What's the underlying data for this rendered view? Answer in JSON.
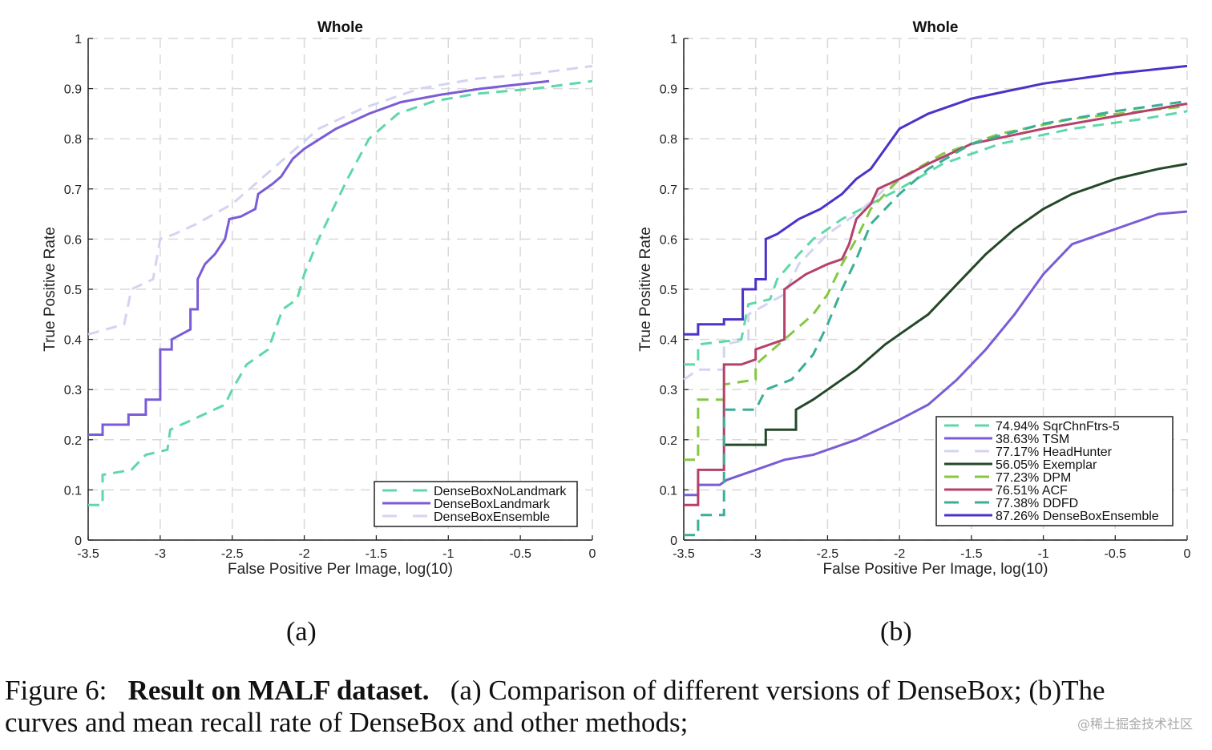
{
  "chart_data": [
    {
      "type": "line",
      "title": "Whole",
      "xlabel": "False Positive Per Image, log(10)",
      "ylabel": "True Positive Rate",
      "xlim": [
        -3.5,
        0
      ],
      "ylim": [
        0,
        1
      ],
      "xticks": [
        "-3.5",
        "-3",
        "-2.5",
        "-2",
        "-1.5",
        "-1",
        "-0.5",
        "0"
      ],
      "yticks": [
        "0",
        "0.1",
        "0.2",
        "0.3",
        "0.4",
        "0.5",
        "0.6",
        "0.7",
        "0.8",
        "0.9",
        "1"
      ],
      "grid": true,
      "legend_position": "bottom-right",
      "series": [
        {
          "name": "DenseBoxNoLandmark",
          "color": "#5fd8a8",
          "dashed": true,
          "points": [
            [
              -3.5,
              0.07
            ],
            [
              -3.4,
              0.07
            ],
            [
              -3.4,
              0.13
            ],
            [
              -3.2,
              0.14
            ],
            [
              -3.1,
              0.17
            ],
            [
              -2.95,
              0.18
            ],
            [
              -2.93,
              0.22
            ],
            [
              -2.7,
              0.25
            ],
            [
              -2.55,
              0.27
            ],
            [
              -2.5,
              0.3
            ],
            [
              -2.4,
              0.35
            ],
            [
              -2.25,
              0.38
            ],
            [
              -2.2,
              0.42
            ],
            [
              -2.15,
              0.46
            ],
            [
              -2.05,
              0.48
            ],
            [
              -2.0,
              0.53
            ],
            [
              -1.9,
              0.6
            ],
            [
              -1.8,
              0.66
            ],
            [
              -1.7,
              0.72
            ],
            [
              -1.55,
              0.8
            ],
            [
              -1.35,
              0.85
            ],
            [
              -1.1,
              0.875
            ],
            [
              -0.8,
              0.89
            ],
            [
              -0.4,
              0.9
            ],
            [
              0,
              0.915
            ]
          ]
        },
        {
          "name": "DenseBoxLandmark",
          "color": "#7a5cd6",
          "dashed": false,
          "points": [
            [
              -3.5,
              0.21
            ],
            [
              -3.4,
              0.21
            ],
            [
              -3.4,
              0.23
            ],
            [
              -3.22,
              0.23
            ],
            [
              -3.22,
              0.25
            ],
            [
              -3.1,
              0.25
            ],
            [
              -3.1,
              0.28
            ],
            [
              -3.0,
              0.28
            ],
            [
              -3.0,
              0.38
            ],
            [
              -2.92,
              0.38
            ],
            [
              -2.92,
              0.4
            ],
            [
              -2.79,
              0.42
            ],
            [
              -2.79,
              0.46
            ],
            [
              -2.74,
              0.46
            ],
            [
              -2.74,
              0.52
            ],
            [
              -2.69,
              0.55
            ],
            [
              -2.62,
              0.57
            ],
            [
              -2.55,
              0.6
            ],
            [
              -2.52,
              0.64
            ],
            [
              -2.44,
              0.645
            ],
            [
              -2.34,
              0.66
            ],
            [
              -2.32,
              0.69
            ],
            [
              -2.22,
              0.71
            ],
            [
              -2.16,
              0.725
            ],
            [
              -2.08,
              0.76
            ],
            [
              -2.0,
              0.78
            ],
            [
              -1.89,
              0.8
            ],
            [
              -1.78,
              0.82
            ],
            [
              -1.55,
              0.85
            ],
            [
              -1.33,
              0.873
            ],
            [
              -1.05,
              0.888
            ],
            [
              -0.77,
              0.9
            ],
            [
              -0.3,
              0.915
            ]
          ]
        },
        {
          "name": "DenseBoxEnsemble",
          "color": "#d4d4f2",
          "dashed": true,
          "points": [
            [
              -3.5,
              0.41
            ],
            [
              -3.25,
              0.43
            ],
            [
              -3.2,
              0.5
            ],
            [
              -3.05,
              0.52
            ],
            [
              -3.0,
              0.6
            ],
            [
              -2.9,
              0.61
            ],
            [
              -2.75,
              0.63
            ],
            [
              -2.5,
              0.67
            ],
            [
              -2.3,
              0.72
            ],
            [
              -2.1,
              0.77
            ],
            [
              -1.9,
              0.82
            ],
            [
              -1.6,
              0.86
            ],
            [
              -1.2,
              0.9
            ],
            [
              -0.8,
              0.92
            ],
            [
              -0.4,
              0.93
            ],
            [
              0,
              0.945
            ]
          ]
        }
      ]
    },
    {
      "type": "line",
      "title": "Whole",
      "xlabel": "False Positive Per Image, log(10)",
      "ylabel": "True Positive Rate",
      "xlim": [
        -3.5,
        0
      ],
      "ylim": [
        0,
        1
      ],
      "xticks": [
        "-3.5",
        "-3",
        "-2.5",
        "-2",
        "-1.5",
        "-1",
        "-0.5",
        "0"
      ],
      "yticks": [
        "0",
        "0.1",
        "0.2",
        "0.3",
        "0.4",
        "0.5",
        "0.6",
        "0.7",
        "0.8",
        "0.9",
        "1"
      ],
      "grid": true,
      "legend_position": "bottom-right",
      "series": [
        {
          "name": "74.94% SqrChnFtrs-5",
          "color": "#5fd8a8",
          "dashed": true,
          "points": [
            [
              -3.5,
              0.35
            ],
            [
              -3.4,
              0.35
            ],
            [
              -3.4,
              0.39
            ],
            [
              -3.1,
              0.4
            ],
            [
              -3.05,
              0.47
            ],
            [
              -2.9,
              0.48
            ],
            [
              -2.85,
              0.52
            ],
            [
              -2.7,
              0.57
            ],
            [
              -2.6,
              0.6
            ],
            [
              -2.4,
              0.64
            ],
            [
              -2.2,
              0.67
            ],
            [
              -2.0,
              0.7
            ],
            [
              -1.7,
              0.75
            ],
            [
              -1.3,
              0.79
            ],
            [
              -0.8,
              0.82
            ],
            [
              -0.3,
              0.84
            ],
            [
              0,
              0.855
            ]
          ]
        },
        {
          "name": "38.63% TSM",
          "color": "#7a5cd6",
          "dashed": false,
          "points": [
            [
              -3.5,
              0.09
            ],
            [
              -3.4,
              0.09
            ],
            [
              -3.4,
              0.11
            ],
            [
              -3.25,
              0.11
            ],
            [
              -3.2,
              0.12
            ],
            [
              -3.0,
              0.14
            ],
            [
              -2.8,
              0.16
            ],
            [
              -2.6,
              0.17
            ],
            [
              -2.3,
              0.2
            ],
            [
              -2.0,
              0.24
            ],
            [
              -1.8,
              0.27
            ],
            [
              -1.6,
              0.32
            ],
            [
              -1.4,
              0.38
            ],
            [
              -1.2,
              0.45
            ],
            [
              -1.0,
              0.53
            ],
            [
              -0.8,
              0.59
            ],
            [
              -0.5,
              0.62
            ],
            [
              -0.2,
              0.65
            ],
            [
              0,
              0.655
            ]
          ]
        },
        {
          "name": "77.17% HeadHunter",
          "color": "#d4d4f2",
          "dashed": true,
          "points": [
            [
              -3.5,
              0.32
            ],
            [
              -3.4,
              0.34
            ],
            [
              -3.22,
              0.34
            ],
            [
              -3.22,
              0.39
            ],
            [
              -3.05,
              0.4
            ],
            [
              -3.05,
              0.45
            ],
            [
              -2.8,
              0.49
            ],
            [
              -2.7,
              0.55
            ],
            [
              -2.5,
              0.61
            ],
            [
              -2.3,
              0.65
            ],
            [
              -2.1,
              0.7
            ],
            [
              -1.8,
              0.75
            ],
            [
              -1.4,
              0.8
            ],
            [
              -1.0,
              0.83
            ],
            [
              -0.5,
              0.855
            ],
            [
              0,
              0.875
            ]
          ]
        },
        {
          "name": "56.05% Exemplar",
          "color": "#24482a",
          "dashed": false,
          "points": [
            [
              -3.22,
              0.19
            ],
            [
              -2.93,
              0.19
            ],
            [
              -2.93,
              0.22
            ],
            [
              -2.72,
              0.22
            ],
            [
              -2.72,
              0.26
            ],
            [
              -2.6,
              0.28
            ],
            [
              -2.5,
              0.3
            ],
            [
              -2.3,
              0.34
            ],
            [
              -2.1,
              0.39
            ],
            [
              -2.0,
              0.41
            ],
            [
              -1.8,
              0.45
            ],
            [
              -1.6,
              0.51
            ],
            [
              -1.4,
              0.57
            ],
            [
              -1.2,
              0.62
            ],
            [
              -1.0,
              0.66
            ],
            [
              -0.8,
              0.69
            ],
            [
              -0.5,
              0.72
            ],
            [
              -0.2,
              0.74
            ],
            [
              0,
              0.75
            ]
          ]
        },
        {
          "name": "77.23% DPM",
          "color": "#84c844",
          "dashed": true,
          "points": [
            [
              -3.5,
              0.16
            ],
            [
              -3.4,
              0.16
            ],
            [
              -3.4,
              0.28
            ],
            [
              -3.22,
              0.28
            ],
            [
              -3.22,
              0.31
            ],
            [
              -3.0,
              0.32
            ],
            [
              -3.0,
              0.35
            ],
            [
              -2.8,
              0.4
            ],
            [
              -2.6,
              0.45
            ],
            [
              -2.5,
              0.49
            ],
            [
              -2.4,
              0.55
            ],
            [
              -2.3,
              0.6
            ],
            [
              -2.2,
              0.66
            ],
            [
              -2.0,
              0.72
            ],
            [
              -1.7,
              0.77
            ],
            [
              -1.3,
              0.81
            ],
            [
              -0.8,
              0.84
            ],
            [
              0,
              0.865
            ]
          ]
        },
        {
          "name": "76.51% ACF",
          "color": "#b5416b",
          "dashed": false,
          "points": [
            [
              -3.5,
              0.07
            ],
            [
              -3.4,
              0.07
            ],
            [
              -3.4,
              0.14
            ],
            [
              -3.22,
              0.14
            ],
            [
              -3.22,
              0.35
            ],
            [
              -3.1,
              0.35
            ],
            [
              -3.0,
              0.36
            ],
            [
              -3.0,
              0.38
            ],
            [
              -2.8,
              0.4
            ],
            [
              -2.8,
              0.5
            ],
            [
              -2.65,
              0.53
            ],
            [
              -2.5,
              0.55
            ],
            [
              -2.4,
              0.56
            ],
            [
              -2.35,
              0.59
            ],
            [
              -2.3,
              0.64
            ],
            [
              -2.2,
              0.67
            ],
            [
              -2.15,
              0.7
            ],
            [
              -2.0,
              0.72
            ],
            [
              -1.8,
              0.75
            ],
            [
              -1.5,
              0.79
            ],
            [
              -1.0,
              0.82
            ],
            [
              -0.5,
              0.845
            ],
            [
              0,
              0.87
            ]
          ]
        },
        {
          "name": "77.38% DDFD",
          "color": "#3aaf96",
          "dashed": true,
          "points": [
            [
              -3.5,
              0.01
            ],
            [
              -3.4,
              0.01
            ],
            [
              -3.4,
              0.05
            ],
            [
              -3.22,
              0.05
            ],
            [
              -3.22,
              0.26
            ],
            [
              -3.0,
              0.26
            ],
            [
              -2.93,
              0.3
            ],
            [
              -2.75,
              0.32
            ],
            [
              -2.6,
              0.37
            ],
            [
              -2.5,
              0.43
            ],
            [
              -2.4,
              0.5
            ],
            [
              -2.3,
              0.56
            ],
            [
              -2.2,
              0.63
            ],
            [
              -2.0,
              0.69
            ],
            [
              -1.8,
              0.74
            ],
            [
              -1.5,
              0.79
            ],
            [
              -1.0,
              0.83
            ],
            [
              -0.5,
              0.855
            ],
            [
              0,
              0.875
            ]
          ]
        },
        {
          "name": "87.26% DenseBoxEnsemble",
          "color": "#4a33c8",
          "dashed": false,
          "points": [
            [
              -3.5,
              0.41
            ],
            [
              -3.4,
              0.41
            ],
            [
              -3.4,
              0.43
            ],
            [
              -3.22,
              0.43
            ],
            [
              -3.22,
              0.44
            ],
            [
              -3.09,
              0.44
            ],
            [
              -3.09,
              0.5
            ],
            [
              -3.0,
              0.5
            ],
            [
              -3.0,
              0.52
            ],
            [
              -2.93,
              0.52
            ],
            [
              -2.93,
              0.6
            ],
            [
              -2.85,
              0.61
            ],
            [
              -2.8,
              0.62
            ],
            [
              -2.7,
              0.64
            ],
            [
              -2.55,
              0.66
            ],
            [
              -2.4,
              0.69
            ],
            [
              -2.3,
              0.72
            ],
            [
              -2.2,
              0.74
            ],
            [
              -2.1,
              0.78
            ],
            [
              -2.0,
              0.82
            ],
            [
              -1.8,
              0.85
            ],
            [
              -1.5,
              0.88
            ],
            [
              -1.0,
              0.91
            ],
            [
              -0.5,
              0.93
            ],
            [
              0,
              0.945
            ]
          ]
        }
      ]
    }
  ],
  "subcaptions": [
    "(a)",
    "(b)"
  ],
  "caption": {
    "prefix": "Figure 6:",
    "bold": "Result on MALF dataset.",
    "line1_rest": "(a) Comparison of different versions of DenseBox; (b)The",
    "line2": "curves and mean recall rate of DenseBox and other methods;"
  },
  "watermark": "@稀土掘金技术社区"
}
